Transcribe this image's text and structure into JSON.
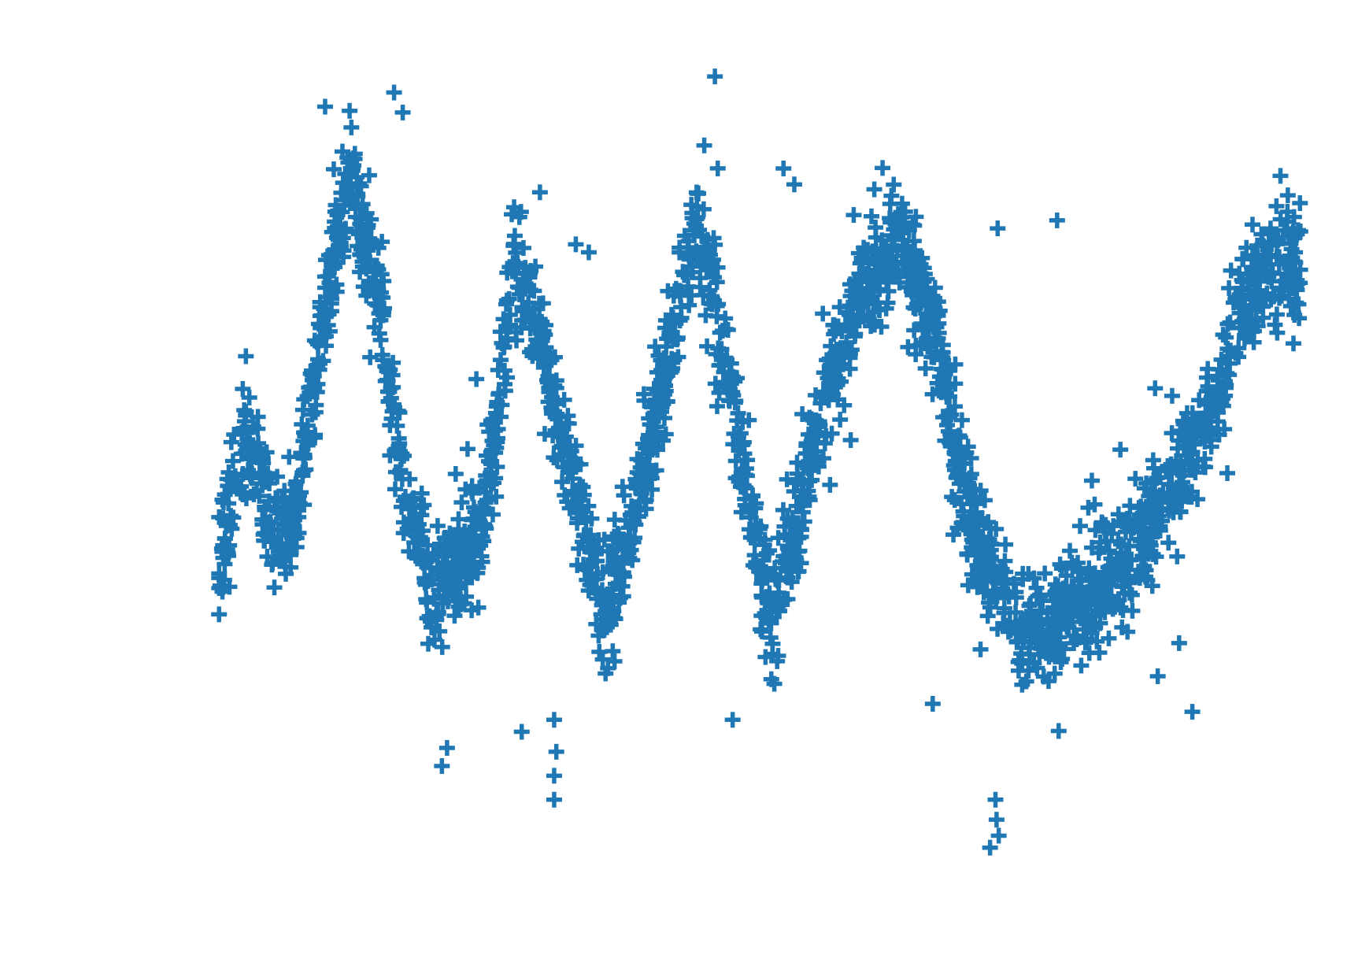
{
  "chart_data": {
    "type": "scatter",
    "title": "",
    "xlabel": "",
    "ylabel": "",
    "axes_visible": false,
    "grid": false,
    "legend": "none",
    "marker": "plus",
    "color": "#1f77b4",
    "xlim": [
      0,
      100
    ],
    "ylim": [
      0,
      100
    ],
    "trend": {
      "x": [
        0,
        2.3,
        5.0,
        6.8,
        8.8,
        12.0,
        15.0,
        17.0,
        20.0,
        24.0,
        25.8,
        27.2,
        30.0,
        33.0,
        36.0,
        40.0,
        44.0,
        46.0,
        48.5,
        51.0,
        54.0,
        57.0,
        60.0,
        63.0,
        66.5,
        68.0,
        71.0,
        74.0,
        76.0,
        80.0,
        85.0,
        88.5,
        92.0,
        95.0,
        97.5,
        100.0
      ],
      "y": [
        38.0,
        53.0,
        41.0,
        43.0,
        60.0,
        86.0,
        69.0,
        48.0,
        33.0,
        42.0,
        55.0,
        77.0,
        65.0,
        45.0,
        30.0,
        53.0,
        80.0,
        70.0,
        50.0,
        30.0,
        47.0,
        63.0,
        73.0,
        78.0,
        66.0,
        52.0,
        38.0,
        30.0,
        29.0,
        33.0,
        40.0,
        48.0,
        57.0,
        72.0,
        75.0,
        76.0
      ]
    },
    "notable_points": [
      {
        "x": 16.2,
        "y": 96.5
      },
      {
        "x": 17.0,
        "y": 94.0
      },
      {
        "x": 2.5,
        "y": 63.5
      },
      {
        "x": 9.0,
        "y": 62.3
      },
      {
        "x": 33.0,
        "y": 77.5
      },
      {
        "x": 34.2,
        "y": 76.5
      },
      {
        "x": 52.2,
        "y": 87.0
      },
      {
        "x": 53.2,
        "y": 85.0
      },
      {
        "x": 72.0,
        "y": 79.5
      },
      {
        "x": 77.5,
        "y": 80.5
      },
      {
        "x": 99.5,
        "y": 76.5
      },
      {
        "x": 99.0,
        "y": 74.5
      },
      {
        "x": 99.2,
        "y": 72.0
      },
      {
        "x": 31.0,
        "y": 11.0
      },
      {
        "x": 31.0,
        "y": 8.0
      },
      {
        "x": 31.2,
        "y": 14.0
      },
      {
        "x": 31.0,
        "y": 18.0
      },
      {
        "x": 71.3,
        "y": 2.0
      },
      {
        "x": 72.1,
        "y": 3.5
      },
      {
        "x": 71.8,
        "y": 8.0
      },
      {
        "x": 71.9,
        "y": 5.5
      },
      {
        "x": 28.0,
        "y": 16.5
      },
      {
        "x": 47.5,
        "y": 18.0
      },
      {
        "x": 66.0,
        "y": 20.0
      },
      {
        "x": 90.0,
        "y": 19.0
      },
      {
        "x": 0.5,
        "y": 35.5
      },
      {
        "x": 49.0,
        "y": 55.5
      },
      {
        "x": 68.7,
        "y": 55.5
      }
    ]
  }
}
